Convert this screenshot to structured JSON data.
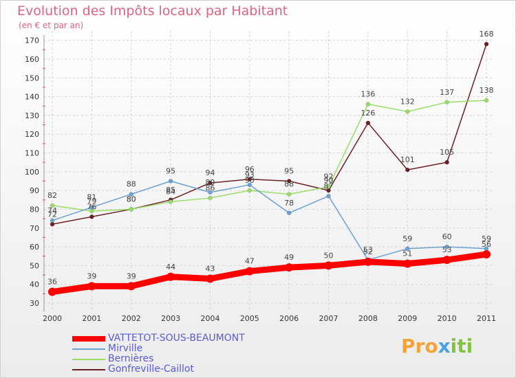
{
  "chart_data": {
    "type": "line",
    "title": "Evolution des Impôts locaux par Habitant",
    "subtitle": "(en € et par an)",
    "xlabel": "",
    "ylabel": "",
    "x": [
      "2000",
      "2001",
      "2002",
      "2003",
      "2004",
      "2005",
      "2006",
      "2007",
      "2008",
      "2009",
      "2010",
      "2011"
    ],
    "ylim": [
      30,
      175
    ],
    "yticks": [
      30,
      40,
      50,
      60,
      70,
      80,
      90,
      100,
      110,
      120,
      130,
      140,
      150,
      160,
      170
    ],
    "grid": true,
    "legend_position": "bottom-left",
    "series": [
      {
        "name": "VATTETOT-SOUS-BEAUMONT",
        "color": "#ff0000",
        "values": [
          36,
          39,
          39,
          44,
          43,
          47,
          49,
          50,
          52,
          51,
          53,
          56
        ]
      },
      {
        "name": "Mirville",
        "color": "#6aa1d2",
        "values": [
          74,
          81,
          88,
          95,
          89,
          93,
          78,
          87,
          53,
          59,
          60,
          59
        ]
      },
      {
        "name": "Bernières",
        "color": "#99dd66",
        "values": [
          82,
          79,
          80,
          84,
          86,
          90,
          88,
          92,
          136,
          132,
          137,
          138
        ]
      },
      {
        "name": "Gonfreville-Caillot",
        "color": "#6b1f24",
        "values": [
          72,
          76,
          80,
          85,
          94,
          96,
          95,
          90,
          126,
          101,
          105,
          168
        ]
      }
    ]
  },
  "brand": {
    "p1": "Pro",
    "p2": "x",
    "p3": "iti"
  }
}
